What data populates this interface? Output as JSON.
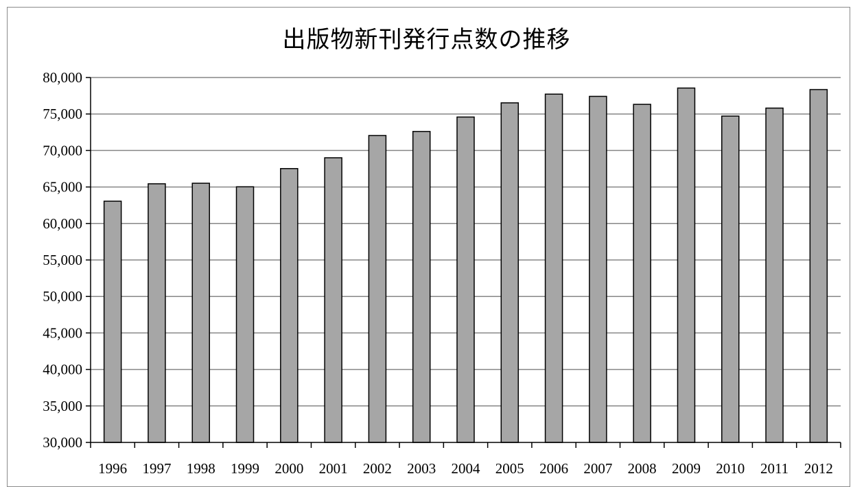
{
  "colors": {
    "bar_fill": "#a6a6a6",
    "bar_stroke": "#000000",
    "gridline": "#868686",
    "axis": "#000000"
  },
  "chart_data": {
    "type": "bar",
    "title": "出版物新刊発行点数の推移",
    "xlabel": "",
    "ylabel": "",
    "categories": [
      "1996",
      "1997",
      "1998",
      "1999",
      "2000",
      "2001",
      "2002",
      "2003",
      "2004",
      "2005",
      "2006",
      "2007",
      "2008",
      "2009",
      "2010",
      "2011",
      "2012"
    ],
    "values": [
      63054,
      65438,
      65513,
      65026,
      67522,
      69003,
      72055,
      72608,
      74587,
      76528,
      77722,
      77417,
      76322,
      78555,
      74714,
      75810,
      78349
    ],
    "ylim": [
      30000,
      80000
    ],
    "yticks": [
      "30,000",
      "35,000",
      "40,000",
      "45,000",
      "50,000",
      "55,000",
      "60,000",
      "65,000",
      "70,000",
      "75,000",
      "80,000"
    ],
    "grid": true,
    "legend": "none"
  }
}
